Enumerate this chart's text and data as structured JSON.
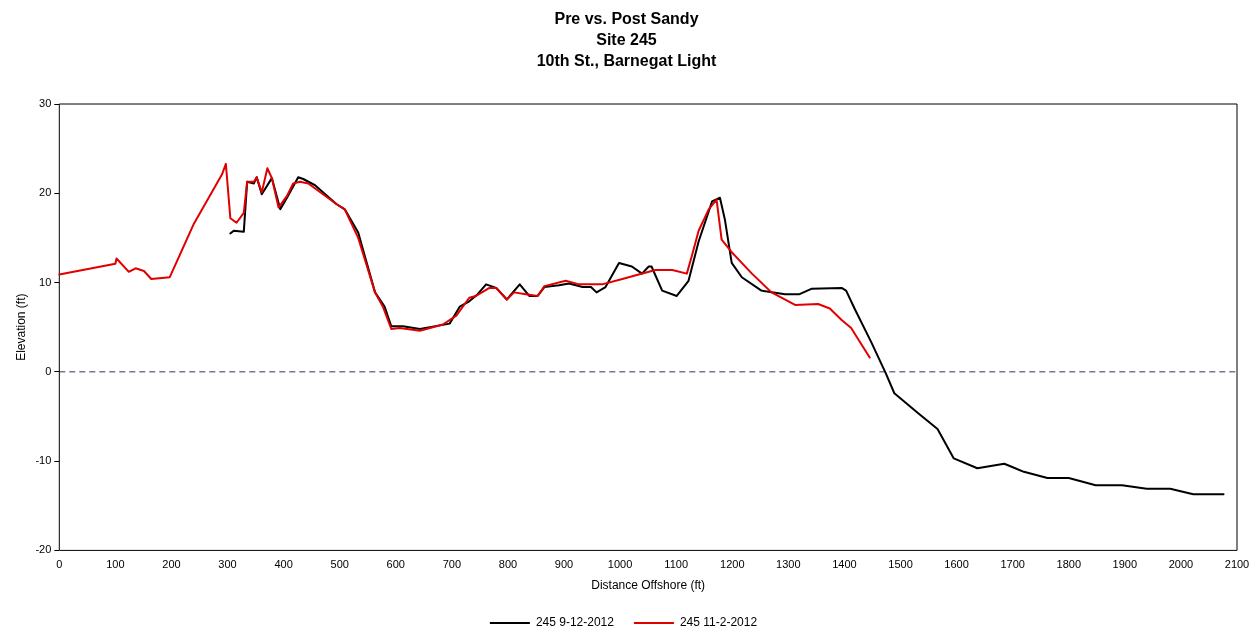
{
  "chart_data": {
    "type": "line",
    "title": "Pre vs. Post Sandy",
    "subtitle": "Site 245\n10th St., Barnegat Light",
    "xlabel": "Distance Offshore (ft)",
    "ylabel": "Elevation (ft)",
    "xlim": [
      0,
      2100
    ],
    "xticks": [
      0,
      100,
      200,
      300,
      400,
      500,
      600,
      700,
      800,
      900,
      1000,
      1100,
      1200,
      1300,
      1400,
      1500,
      1600,
      1700,
      1800,
      1900,
      2000,
      2100
    ],
    "ylim": [
      -20,
      30
    ],
    "yticks": [
      -20,
      -10,
      0,
      10,
      20,
      30
    ],
    "grid": false,
    "legend": "bottom",
    "marker": "none",
    "line_style": "solid",
    "ref_lines": [
      {
        "axis": "y",
        "value": 0,
        "color": "#333366",
        "line_style": "dashed"
      }
    ],
    "series": [
      {
        "name": "245 9-12-2012",
        "color": "#000000",
        "x": [
          305,
          311,
          329,
          335,
          347,
          352,
          361,
          379,
          394,
          406,
          426,
          435,
          456,
          494,
          509,
          533,
          563,
          580,
          592,
          613,
          643,
          696,
          714,
          731,
          746,
          761,
          779,
          798,
          821,
          838,
          853,
          865,
          891,
          909,
          933,
          948,
          958,
          974,
          998,
          1021,
          1039,
          1051,
          1056,
          1075,
          1101,
          1122,
          1140,
          1164,
          1178,
          1187,
          1199,
          1217,
          1252,
          1294,
          1320,
          1341,
          1395,
          1403,
          1418,
          1448,
          1474,
          1489,
          1531,
          1566,
          1595,
          1637,
          1685,
          1720,
          1762,
          1800,
          1848,
          1895,
          1939,
          1981,
          2022,
          2076
        ],
        "values": [
          15.5,
          15.8,
          15.7,
          21.3,
          21.1,
          21.8,
          19.9,
          21.7,
          18.2,
          19.5,
          21.8,
          21.6,
          20.9,
          18.8,
          18.2,
          15.6,
          8.9,
          7.3,
          5.1,
          5.1,
          4.8,
          5.4,
          7.3,
          7.9,
          8.7,
          9.8,
          9.4,
          8.1,
          9.8,
          8.5,
          8.5,
          9.5,
          9.7,
          9.9,
          9.5,
          9.5,
          8.9,
          9.5,
          12.2,
          11.8,
          11.0,
          11.8,
          11.8,
          9.1,
          8.5,
          10.2,
          14.6,
          19.1,
          19.5,
          17.0,
          12.2,
          10.6,
          9.1,
          8.7,
          8.7,
          9.3,
          9.4,
          9.1,
          7.1,
          3.3,
          -0.2,
          -2.4,
          -4.6,
          -6.4,
          -9.7,
          -10.8,
          -10.3,
          -11.2,
          -11.9,
          -11.9,
          -12.7,
          -12.7,
          -13.1,
          -13.1,
          -13.7,
          -13.7
        ]
      },
      {
        "name": "245 11-2-2012",
        "color": "#e00000",
        "x": [
          0,
          100,
          102,
          124,
          136,
          151,
          164,
          197,
          240,
          290,
          297,
          305,
          316,
          329,
          335,
          347,
          352,
          361,
          371,
          379,
          391,
          406,
          417,
          429,
          444,
          494,
          509,
          533,
          563,
          577,
          592,
          607,
          643,
          684,
          708,
          731,
          743,
          767,
          779,
          798,
          811,
          832,
          853,
          865,
          903,
          927,
          968,
          1004,
          1033,
          1063,
          1093,
          1119,
          1128,
          1140,
          1158,
          1172,
          1181,
          1199,
          1235,
          1270,
          1312,
          1353,
          1374,
          1395,
          1412,
          1445
        ],
        "values": [
          10.9,
          12.1,
          12.7,
          11.2,
          11.6,
          11.3,
          10.4,
          10.6,
          16.6,
          22.1,
          23.3,
          17.2,
          16.7,
          17.8,
          21.3,
          21.3,
          21.8,
          20.1,
          22.8,
          21.7,
          18.4,
          19.7,
          21.1,
          21.3,
          21.1,
          18.8,
          18.2,
          15.0,
          8.9,
          7.3,
          4.8,
          4.9,
          4.6,
          5.3,
          6.3,
          8.3,
          8.5,
          9.4,
          9.4,
          8.1,
          8.9,
          8.7,
          8.5,
          9.6,
          10.2,
          9.8,
          9.8,
          10.4,
          10.9,
          11.4,
          11.4,
          11.0,
          13.0,
          15.8,
          18.2,
          19.3,
          14.8,
          13.4,
          11.0,
          8.9,
          7.5,
          7.6,
          7.1,
          5.8,
          4.9,
          1.6
        ]
      }
    ]
  }
}
